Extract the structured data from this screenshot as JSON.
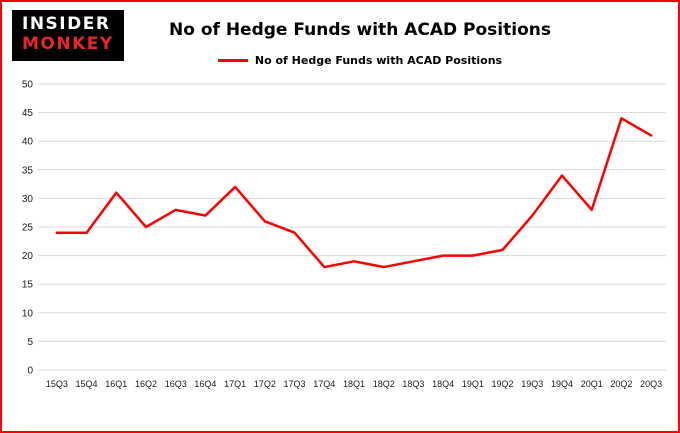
{
  "header": {
    "logo_line1": "INSIDER",
    "logo_line2": "MONKEY",
    "title": "No of Hedge Funds with ACAD Positions"
  },
  "legend": {
    "label": "No of Hedge Funds with ACAD Positions"
  },
  "colors": {
    "border": "#fe0000",
    "line": "#fe0000",
    "grid": "#d9d9d9",
    "logo_background": "#000000",
    "logo_primary_text": "#ffffff",
    "logo_accent_text": "#e8242c"
  },
  "chart_data": {
    "type": "line",
    "title": "No of Hedge Funds with ACAD Positions",
    "legend_entries": [
      "No of Hedge Funds with ACAD Positions"
    ],
    "categories": [
      "15Q3",
      "15Q4",
      "16Q1",
      "16Q2",
      "16Q3",
      "16Q4",
      "17Q1",
      "17Q2",
      "17Q3",
      "17Q4",
      "18Q1",
      "18Q2",
      "18Q3",
      "18Q4",
      "19Q1",
      "19Q2",
      "19Q3",
      "19Q4",
      "20Q1",
      "20Q2",
      "20Q3"
    ],
    "values": [
      24,
      24,
      31,
      25,
      28,
      27,
      32,
      26,
      24,
      18,
      19,
      18,
      19,
      20,
      20,
      21,
      27,
      34,
      28,
      44,
      41
    ],
    "xlabel": "",
    "ylabel": "",
    "ylim": [
      0,
      50
    ],
    "ytick_step": 5,
    "grid": true,
    "legend_position": "top-center",
    "line_color": "#fe0000"
  }
}
